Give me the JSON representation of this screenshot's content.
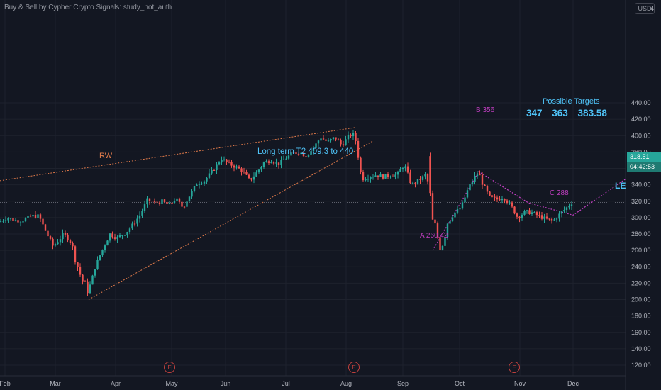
{
  "study_label": "Buy & Sell by Cypher Crypto Signals: study_not_auth",
  "currency": "USD",
  "price_tag": {
    "price": "318.51",
    "countdown": "04:42:53"
  },
  "annotations": {
    "rw": "RW",
    "long_term": "Long term T2  409.3 to 440",
    "possible_targets": "Possible Targets",
    "target_values": "347  363  383.58",
    "point_b": "B  356",
    "point_a": "A 260.42",
    "point_c": "C 288",
    "le": "LE"
  },
  "earnings_marker": "E",
  "colors": {
    "background": "#131722",
    "up": "#26a69a",
    "down": "#ef5350",
    "trendline": "#e07a4a",
    "pattern": "#c33fc3",
    "annotation": "#4fc3f7"
  },
  "chart_data": {
    "type": "candlestick",
    "title": "",
    "x_months": [
      "Feb",
      "Mar",
      "Apr",
      "May",
      "Jun",
      "Jul",
      "Aug",
      "Sep",
      "Oct",
      "Nov",
      "Dec"
    ],
    "y_ticks": [
      120,
      140,
      160,
      180,
      200,
      220,
      240,
      260,
      280,
      300,
      320,
      340,
      360,
      380,
      400,
      420,
      440
    ],
    "ylim": [
      112,
      450
    ],
    "current_price": 318.51,
    "price_path": [
      [
        0,
        295
      ],
      [
        10,
        300
      ],
      [
        20,
        297
      ],
      [
        30,
        296
      ],
      [
        45,
        302
      ],
      [
        55,
        302
      ],
      [
        65,
        282
      ],
      [
        75,
        265
      ],
      [
        90,
        280
      ],
      [
        100,
        270
      ],
      [
        108,
        245
      ],
      [
        115,
        225
      ],
      [
        125,
        210
      ],
      [
        135,
        242
      ],
      [
        145,
        262
      ],
      [
        155,
        280
      ],
      [
        165,
        275
      ],
      [
        178,
        282
      ],
      [
        188,
        292
      ],
      [
        198,
        304
      ],
      [
        208,
        322
      ],
      [
        218,
        318
      ],
      [
        228,
        320
      ],
      [
        238,
        315
      ],
      [
        248,
        323
      ],
      [
        258,
        312
      ],
      [
        268,
        328
      ],
      [
        278,
        342
      ],
      [
        288,
        345
      ],
      [
        298,
        355
      ],
      [
        312,
        372
      ],
      [
        322,
        366
      ],
      [
        332,
        362
      ],
      [
        342,
        357
      ],
      [
        352,
        345
      ],
      [
        362,
        355
      ],
      [
        372,
        367
      ],
      [
        382,
        370
      ],
      [
        392,
        365
      ],
      [
        402,
        372
      ],
      [
        412,
        378
      ],
      [
        422,
        380
      ],
      [
        432,
        375
      ],
      [
        442,
        385
      ],
      [
        452,
        398
      ],
      [
        462,
        392
      ],
      [
        472,
        398
      ],
      [
        482,
        388
      ],
      [
        492,
        400
      ],
      [
        500,
        402
      ],
      [
        510,
        347
      ],
      [
        520,
        350
      ],
      [
        530,
        352
      ],
      [
        540,
        350
      ],
      [
        550,
        352
      ],
      [
        560,
        352
      ],
      [
        570,
        365
      ],
      [
        580,
        340
      ],
      [
        590,
        345
      ],
      [
        600,
        352
      ],
      [
        606,
        335
      ],
      [
        610,
        295
      ],
      [
        614,
        288
      ],
      [
        620,
        265
      ],
      [
        625,
        270
      ],
      [
        630,
        292
      ],
      [
        640,
        305
      ],
      [
        650,
        312
      ],
      [
        660,
        335
      ],
      [
        668,
        348
      ],
      [
        675,
        355
      ],
      [
        680,
        342
      ],
      [
        690,
        325
      ],
      [
        700,
        322
      ],
      [
        710,
        325
      ],
      [
        720,
        315
      ],
      [
        730,
        300
      ],
      [
        740,
        307
      ],
      [
        750,
        306
      ],
      [
        760,
        302
      ],
      [
        770,
        298
      ],
      [
        780,
        296
      ],
      [
        790,
        305
      ],
      [
        800,
        313
      ],
      [
        806,
        318
      ]
    ],
    "annotations_prices": {
      "point_a": 260.42,
      "point_b": 356,
      "point_c": 288,
      "targets": [
        347,
        363,
        383.58
      ],
      "long_term_target": [
        409.3,
        440
      ]
    },
    "earnings_count": 3
  }
}
